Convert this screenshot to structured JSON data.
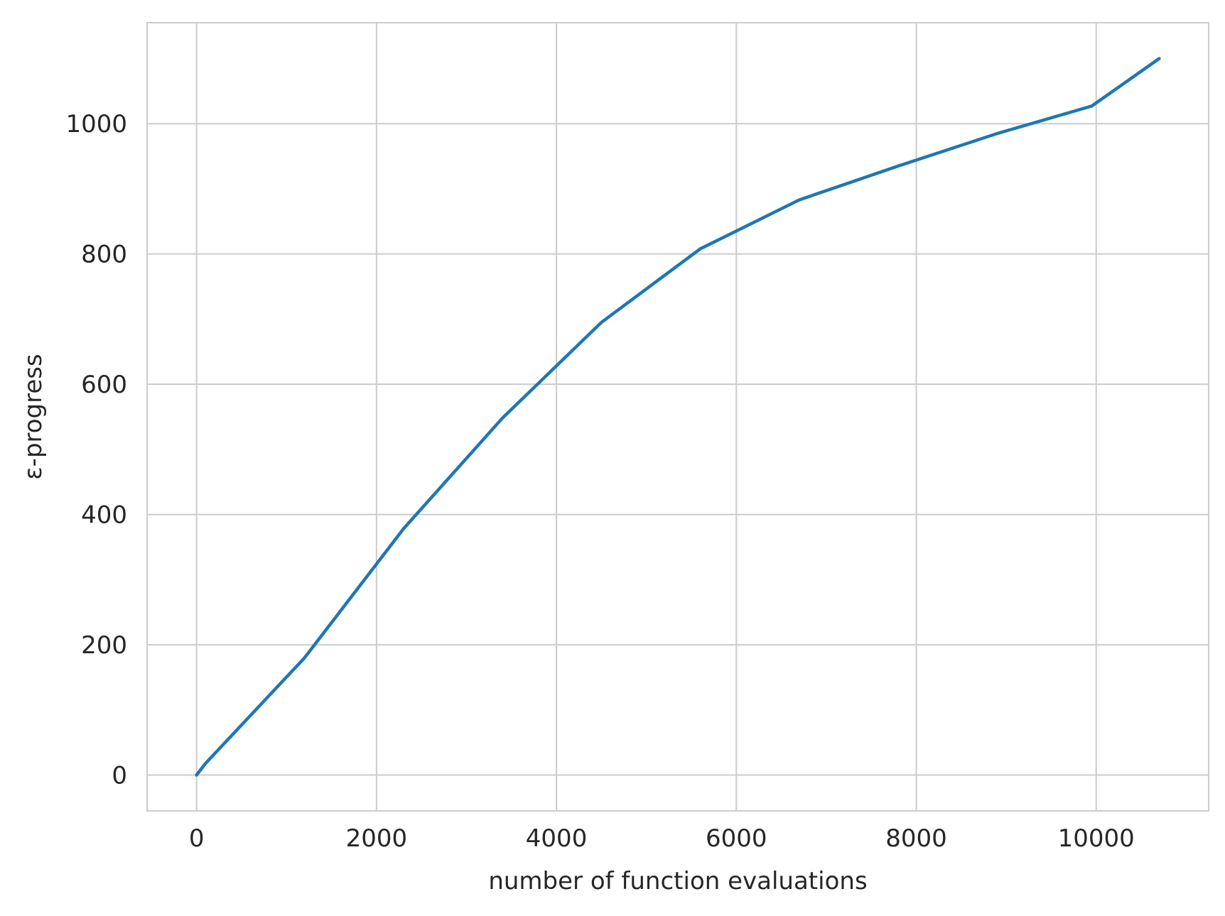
{
  "chart_data": {
    "type": "line",
    "title": "",
    "xlabel": "number of function evaluations",
    "ylabel": "ε-progress",
    "xlim": [
      -550,
      11250
    ],
    "ylim": [
      -55,
      1155
    ],
    "xticks": [
      0,
      2000,
      4000,
      6000,
      8000,
      10000
    ],
    "yticks": [
      0,
      200,
      400,
      600,
      800,
      1000
    ],
    "grid": true,
    "legend": "none",
    "colors": {
      "line": "#1f77b4",
      "grid": "#cccccc",
      "spine": "#cccccc",
      "text": "#262626"
    },
    "series": [
      {
        "x": [
          0,
          100,
          1200,
          2300,
          3400,
          4500,
          5600,
          6700,
          7800,
          8900,
          9950,
          10700
        ],
        "y": [
          0,
          18,
          180,
          378,
          548,
          695,
          808,
          883,
          935,
          985,
          1027,
          1100
        ]
      }
    ]
  }
}
